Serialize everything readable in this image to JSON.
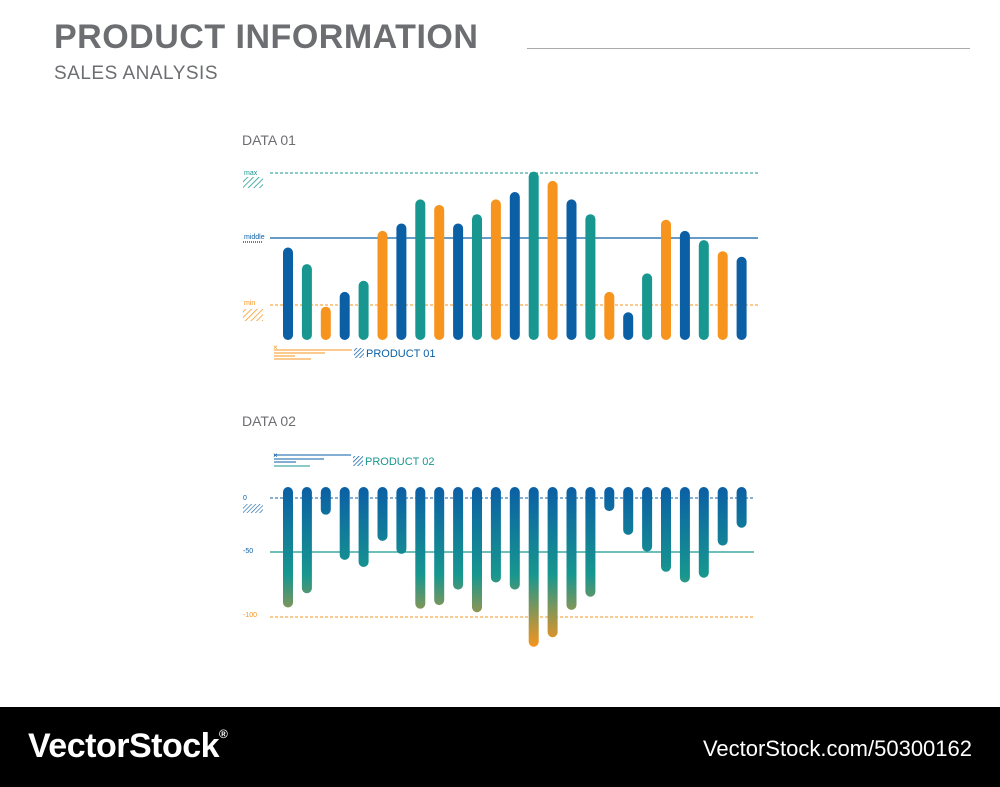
{
  "header": {
    "title": "PRODUCT INFORMATION",
    "subtitle": "SALES ANALYSIS"
  },
  "colors": {
    "blue": "#0b5fa5",
    "teal": "#17978f",
    "orange": "#f7941d",
    "text": "#6d6e71",
    "rule": "#a7a9ac"
  },
  "chart_data": [
    {
      "label": "DATA 01",
      "type": "bar",
      "legend": "PRODUCT 01",
      "reference_lines": [
        {
          "name": "max",
          "value": 100,
          "style": "dashed",
          "color": "teal"
        },
        {
          "name": "middle",
          "value": 59,
          "style": "solid",
          "color": "blue"
        },
        {
          "name": "min",
          "value": 21,
          "style": "dashed",
          "color": "orange"
        }
      ],
      "ylim": [
        0,
        100
      ],
      "values": [
        50,
        41,
        18,
        26,
        32,
        59,
        63,
        76,
        73,
        63,
        68,
        76,
        80,
        91,
        86,
        76,
        68,
        26,
        15,
        36,
        65,
        59,
        54,
        48,
        45
      ],
      "bar_colors": [
        "blue",
        "teal",
        "orange",
        "blue",
        "teal",
        "orange",
        "blue",
        "teal",
        "orange",
        "blue",
        "teal",
        "orange",
        "blue",
        "teal",
        "orange",
        "blue",
        "teal",
        "orange",
        "blue",
        "teal",
        "orange",
        "blue",
        "teal",
        "orange",
        "blue"
      ]
    },
    {
      "label": "DATA 02",
      "type": "bar",
      "legend": "PRODUCT 02",
      "reference_lines": [
        {
          "name": "0",
          "value": 0,
          "style": "dashed",
          "color": "blue"
        },
        {
          "name": "-50",
          "value": -50,
          "style": "solid",
          "color": "teal"
        },
        {
          "name": "-100",
          "value": -100,
          "style": "dashed",
          "color": "orange"
        }
      ],
      "ylim": [
        -125,
        10
      ],
      "values": [
        -92,
        -80,
        -14,
        -52,
        -58,
        -36,
        -47,
        -93,
        -90,
        -77,
        -96,
        -71,
        -77,
        -125,
        -117,
        -94,
        -83,
        -11,
        -31,
        -45,
        -62,
        -71,
        -67,
        -40,
        -25
      ]
    }
  ],
  "footer": {
    "brand": "VectorStock",
    "registered": "®",
    "image_id": "VectorStock.com/50300162"
  }
}
